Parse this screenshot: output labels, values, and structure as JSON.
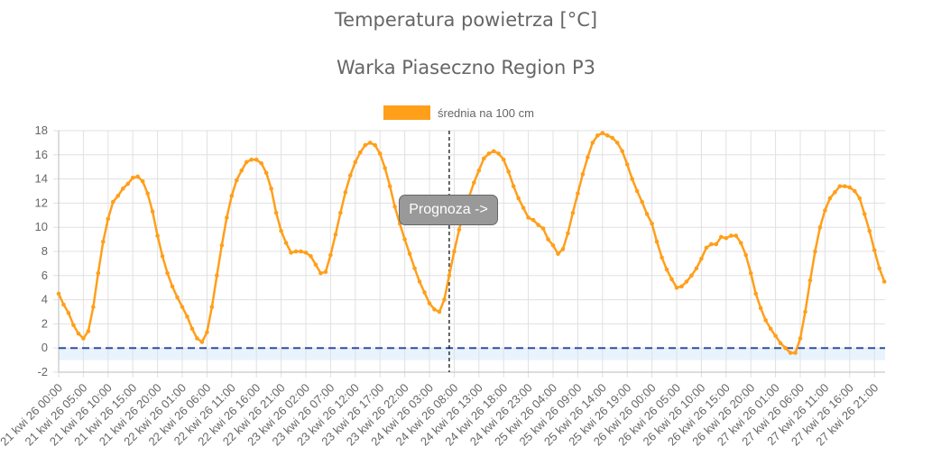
{
  "title": "Temperatura powietrza [°C]",
  "subtitle": "Warka Piaseczno Region P3",
  "forecast_label": "Prognoza ->",
  "colors": {
    "series": "#ff9f1a",
    "zero_line": "#2f4fa0",
    "band": "#e8f3fd",
    "grid": "#e0e0e0",
    "forecast_line": "#000000"
  },
  "chart_data": {
    "type": "line",
    "title": "Temperatura powietrza [°C]",
    "subtitle": "Warka Piaseczno Region P3",
    "legend": "top",
    "grid": true,
    "ylim": [
      -2,
      18
    ],
    "y_ticks": [
      "18",
      "16",
      "14",
      "12",
      "10",
      "8",
      "6",
      "4",
      "2",
      "0",
      "-2"
    ],
    "x_interval": "1 hour",
    "x_range": [
      "21 kwi 26 00:00",
      "27 kwi 26 23:00"
    ],
    "x_tick_labels": [
      "21 kwi 26 00:00",
      "21 kwi 26 05:00",
      "21 kwi 26 10:00",
      "21 kwi 26 15:00",
      "21 kwi 26 20:00",
      "22 kwi 26 01:00",
      "22 kwi 26 06:00",
      "22 kwi 26 11:00",
      "22 kwi 26 16:00",
      "22 kwi 26 21:00",
      "23 kwi 26 02:00",
      "23 kwi 26 07:00",
      "23 kwi 26 12:00",
      "23 kwi 26 17:00",
      "23 kwi 26 22:00",
      "24 kwi 26 03:00",
      "24 kwi 26 08:00",
      "24 kwi 26 13:00",
      "24 kwi 26 18:00",
      "24 kwi 26 23:00",
      "25 kwi 26 04:00",
      "25 kwi 26 09:00",
      "25 kwi 26 14:00",
      "25 kwi 26 19:00",
      "26 kwi 26 00:00",
      "26 kwi 26 05:00",
      "26 kwi 26 10:00",
      "26 kwi 26 15:00",
      "26 kwi 26 20:00",
      "27 kwi 26 01:00",
      "27 kwi 26 06:00",
      "27 kwi 26 11:00",
      "27 kwi 26 16:00",
      "27 kwi 26 21:00"
    ],
    "forecast_start": "24 kwi 26 07:00",
    "reference_line": 0,
    "band": [
      -1,
      0
    ],
    "series": [
      {
        "name": "średnia na 100 cm",
        "values": [
          4.5,
          3.6,
          2.9,
          1.9,
          1.2,
          0.8,
          1.4,
          3.4,
          6.2,
          8.8,
          10.7,
          12.1,
          12.6,
          13.2,
          13.6,
          14.1,
          14.2,
          13.8,
          12.8,
          11.3,
          9.3,
          7.6,
          6.2,
          5.1,
          4.2,
          3.4,
          2.6,
          1.6,
          0.8,
          0.5,
          1.3,
          3.4,
          6.0,
          8.5,
          10.8,
          12.6,
          13.9,
          14.7,
          15.4,
          15.6,
          15.6,
          15.3,
          14.5,
          13.2,
          11.2,
          9.7,
          8.7,
          7.9,
          8.0,
          8.0,
          7.9,
          7.6,
          6.9,
          6.2,
          6.3,
          7.7,
          9.4,
          11.2,
          12.9,
          14.3,
          15.4,
          16.2,
          16.8,
          17.0,
          16.8,
          16.1,
          14.9,
          13.4,
          11.7,
          10.3,
          9.0,
          7.8,
          6.6,
          5.5,
          4.6,
          3.7,
          3.2,
          3.0,
          4.0,
          6.0,
          8.0,
          9.8,
          11.5,
          12.5,
          13.7,
          14.7,
          15.7,
          16.1,
          16.3,
          16.1,
          15.6,
          14.6,
          13.4,
          12.4,
          11.6,
          10.8,
          10.6,
          10.2,
          9.9,
          9.0,
          8.5,
          7.8,
          8.2,
          9.5,
          11.2,
          12.8,
          14.4,
          15.8,
          17.0,
          17.6,
          17.8,
          17.6,
          17.4,
          17.0,
          16.3,
          15.2,
          14.0,
          13.0,
          12.1,
          11.1,
          10.3,
          8.8,
          7.5,
          6.5,
          5.7,
          5.0,
          5.1,
          5.5,
          6.0,
          6.6,
          7.4,
          8.3,
          8.6,
          8.6,
          9.2,
          9.1,
          9.3,
          9.3,
          8.7,
          7.7,
          6.2,
          4.5,
          3.3,
          2.3,
          1.6,
          1.0,
          0.4,
          0.0,
          -0.4,
          -0.4,
          0.8,
          3.0,
          5.6,
          8.0,
          10.0,
          11.4,
          12.4,
          12.9,
          13.4,
          13.4,
          13.3,
          13.0,
          12.4,
          11.1,
          9.7,
          8.1,
          6.6,
          5.5
        ]
      }
    ]
  }
}
